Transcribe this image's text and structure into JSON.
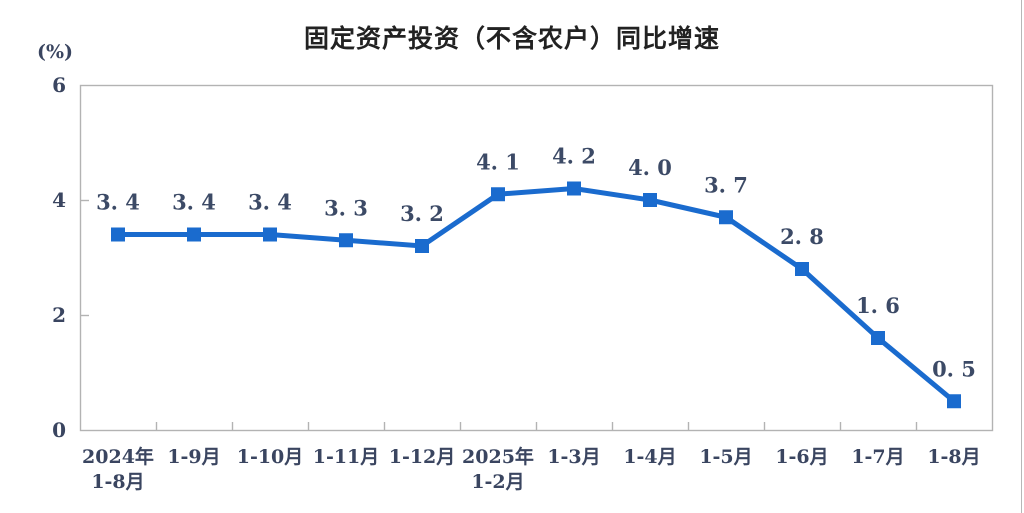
{
  "page": {
    "background": "#ffffff",
    "right_edge_border_color": "#b7b7b7"
  },
  "chart_data": {
    "type": "line",
    "title": "固定资产投资（不含农户）同比增速",
    "unit_label": "(%)",
    "categories": [
      [
        "2024年",
        "1-8月"
      ],
      [
        "1-9月"
      ],
      [
        "1-10月"
      ],
      [
        "1-11月"
      ],
      [
        "1-12月"
      ],
      [
        "2025年",
        "1-2月"
      ],
      [
        "1-3月"
      ],
      [
        "1-4月"
      ],
      [
        "1-5月"
      ],
      [
        "1-6月"
      ],
      [
        "1-7月"
      ],
      [
        "1-8月"
      ]
    ],
    "values": [
      3.4,
      3.4,
      3.4,
      3.3,
      3.2,
      4.1,
      4.2,
      4.0,
      3.7,
      2.8,
      1.6,
      0.5
    ],
    "ylim": [
      0,
      6
    ],
    "yticks": [
      0,
      2,
      4,
      6
    ],
    "grid": false,
    "legend": "none",
    "xlabel": "",
    "ylabel": "(%)",
    "marker": "square",
    "colors": {
      "line": "#1a6bce",
      "marker": "#1a6bce",
      "axis": "#b3b3b3",
      "tick_text": "#3a4560",
      "data_label_text": "#3c4a66",
      "title_text": "#222222"
    }
  }
}
